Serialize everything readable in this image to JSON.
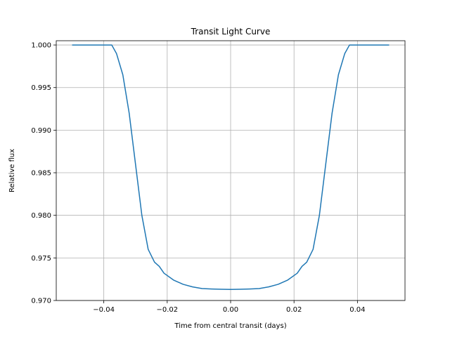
{
  "chart_data": {
    "type": "line",
    "title": "Transit Light Curve",
    "xlabel": "Time from central transit (days)",
    "ylabel": "Relative flux",
    "xlim": [
      -0.055,
      0.055
    ],
    "ylim": [
      0.97,
      1.0005
    ],
    "x_ticks": [
      -0.04,
      -0.02,
      0.0,
      0.02,
      0.04
    ],
    "x_tick_labels": [
      "−0.04",
      "−0.02",
      "0.00",
      "0.02",
      "0.04"
    ],
    "y_ticks": [
      0.97,
      0.975,
      0.98,
      0.985,
      0.99,
      0.995,
      1.0
    ],
    "y_tick_labels": [
      "0.970",
      "0.975",
      "0.980",
      "0.985",
      "0.990",
      "0.995",
      "1.000"
    ],
    "grid": true,
    "line_color": "#1f77b4",
    "series": [
      {
        "x": [
          -0.05,
          -0.045,
          -0.04,
          -0.0375,
          -0.036,
          -0.034,
          -0.032,
          -0.03,
          -0.028,
          -0.026,
          -0.024,
          -0.0225,
          -0.021,
          -0.018,
          -0.015,
          -0.012,
          -0.009,
          -0.006,
          -0.003,
          0.0,
          0.003,
          0.006,
          0.009,
          0.012,
          0.015,
          0.018,
          0.021,
          0.0225,
          0.024,
          0.026,
          0.028,
          0.03,
          0.032,
          0.034,
          0.036,
          0.0375,
          0.04,
          0.045,
          0.05
        ],
        "y": [
          1.0,
          1.0,
          1.0,
          1.0,
          0.999,
          0.9965,
          0.992,
          0.986,
          0.98,
          0.976,
          0.9745,
          0.974,
          0.9732,
          0.9724,
          0.9719,
          0.9716,
          0.9714,
          0.97135,
          0.97132,
          0.9713,
          0.97132,
          0.97135,
          0.9714,
          0.9716,
          0.9719,
          0.9724,
          0.9732,
          0.974,
          0.9745,
          0.976,
          0.98,
          0.986,
          0.992,
          0.9965,
          0.999,
          1.0,
          1.0,
          1.0,
          1.0
        ]
      }
    ]
  }
}
